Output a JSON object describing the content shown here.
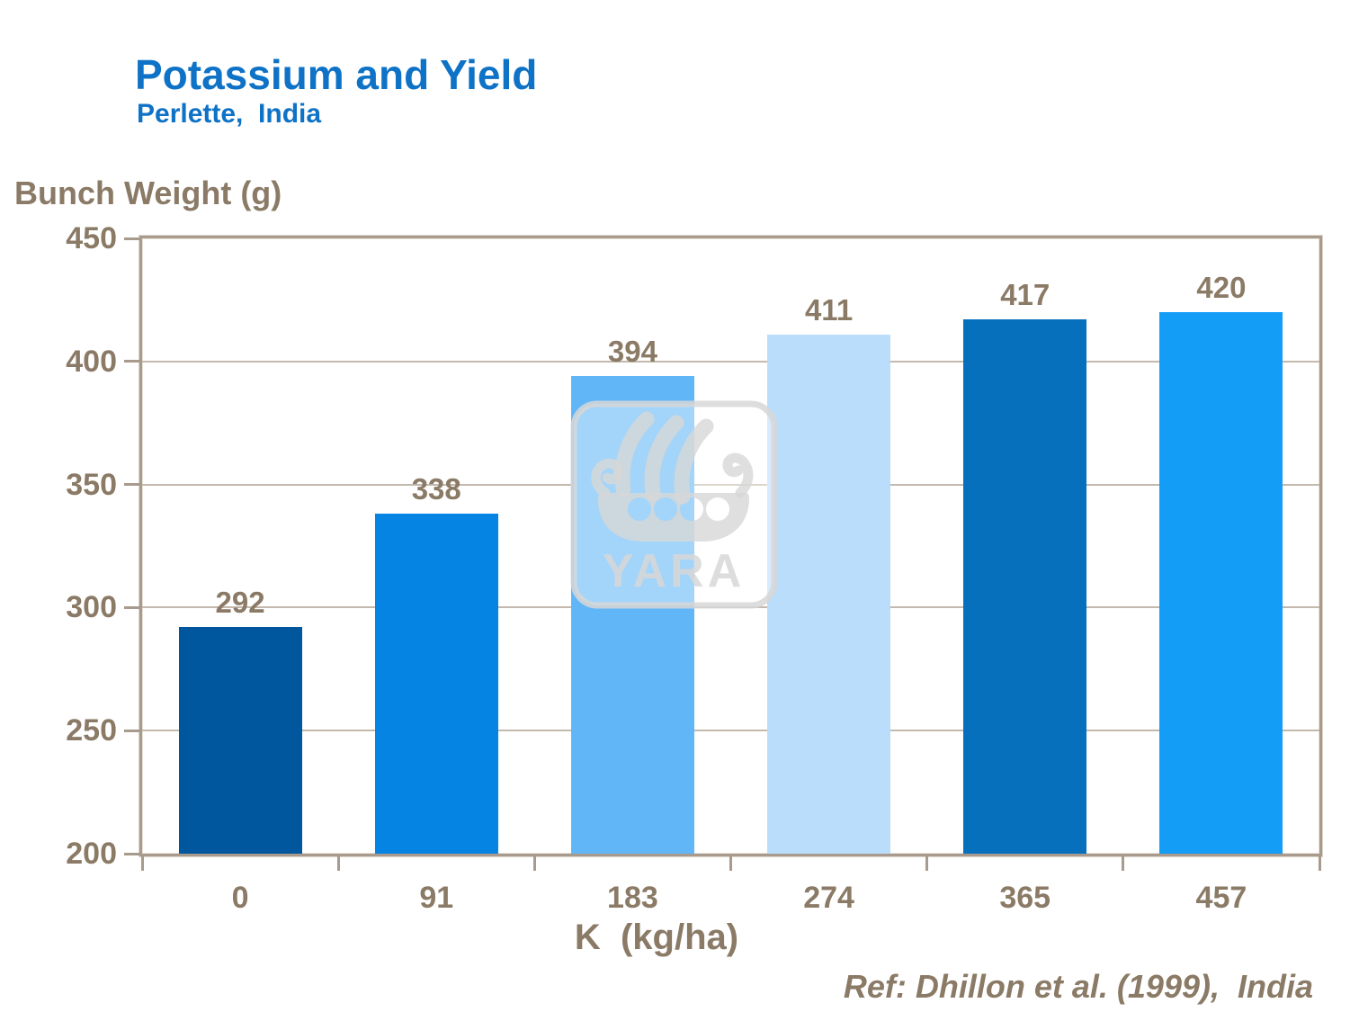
{
  "slide": {
    "title": "Potassium and Yield",
    "subtitle": "Perlette,  India",
    "y_axis_title": "Bunch Weight (g)",
    "x_axis_title": "K  (kg/ha)",
    "reference": "Ref: Dhillon et al. (1999),  India",
    "watermark_text": "YARA",
    "watermark_icon": "viking-ship-logo",
    "colors": {
      "title_blue": "#0e72c6",
      "text_taupe": "#8a7a66",
      "frame_tan": "#a89b8d",
      "grid_tan": "#c3b9ad",
      "watermark_gray": "#d7d7d7"
    }
  },
  "chart_data": {
    "type": "bar",
    "title": "Potassium and Yield",
    "subtitle": "Perlette, India",
    "categories": [
      "0",
      "91",
      "183",
      "274",
      "365",
      "457"
    ],
    "values": [
      292,
      338,
      394,
      411,
      417,
      420
    ],
    "bar_colors": [
      "#00579d",
      "#0584e4",
      "#61b6f7",
      "#baddfb",
      "#0670bd",
      "#149df6"
    ],
    "xlabel": "K  (kg/ha)",
    "ylabel": "Bunch Weight (g)",
    "ylim": [
      200,
      450
    ],
    "ytick_labels": [
      450,
      400,
      350,
      300,
      250,
      200
    ],
    "grid": true,
    "legend": false,
    "annotation": "Ref: Dhillon et al. (1999), India"
  }
}
